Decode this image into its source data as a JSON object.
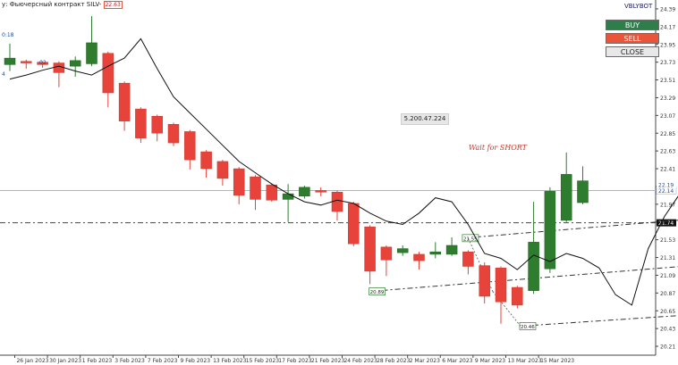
{
  "header": {
    "title": "у: Фьючерсный контракт SILV-",
    "title_badge": "22.63",
    "brand": "VBLYBOT",
    "left_labels": [
      "0:18",
      "4",
      "02"
    ]
  },
  "buttons": {
    "buy": "BUY",
    "sell": "SELL",
    "close": "CLOSE"
  },
  "labels": {
    "center": "5.200.47.224",
    "note": "Wait for SHORT"
  },
  "colors": {
    "bull": "#2e7d2e",
    "bear": "#e8433a",
    "line": "#111111",
    "hline": "#9ab7e6"
  },
  "chart_data": {
    "type": "candlestick",
    "y_ticks": [
      "24.39",
      "24.17",
      "23.95",
      "23.73",
      "23.51",
      "23.29",
      "23.07",
      "22.85",
      "22.63",
      "22.41",
      "22.19",
      "21.97",
      "21.75",
      "21.53",
      "21.31",
      "21.09",
      "20.87",
      "20.65",
      "20.43",
      "20.21"
    ],
    "ylim": [
      20.1,
      24.5
    ],
    "x_ticks": [
      "26 Jan 2023",
      "30 Jan 2023",
      "1 Feb 2023",
      "3 Feb 2023",
      "7 Feb 2023",
      "9 Feb 2023",
      "13 Feb 2023",
      "15 Feb 2023",
      "17 Feb 2023",
      "21 Feb 2023",
      "24 Feb 2023",
      "28 Feb 2023",
      "2 Mar 2023",
      "6 Mar 2023",
      "9 Mar 2023",
      "13 Mar 2023",
      "15 Mar 2023"
    ],
    "candles": [
      {
        "o": 23.7,
        "h": 23.96,
        "l": 23.62,
        "c": 23.78
      },
      {
        "o": 23.74,
        "h": 23.76,
        "l": 23.65,
        "c": 23.72
      },
      {
        "o": 23.73,
        "h": 23.74,
        "l": 23.66,
        "c": 23.7
      },
      {
        "o": 23.72,
        "h": 23.74,
        "l": 23.42,
        "c": 23.6
      },
      {
        "o": 23.68,
        "h": 23.8,
        "l": 23.55,
        "c": 23.75
      },
      {
        "o": 23.71,
        "h": 24.3,
        "l": 23.68,
        "c": 23.97
      },
      {
        "o": 23.84,
        "h": 23.86,
        "l": 23.17,
        "c": 23.35
      },
      {
        "o": 23.47,
        "h": 23.49,
        "l": 22.88,
        "c": 23.0
      },
      {
        "o": 23.15,
        "h": 23.17,
        "l": 22.73,
        "c": 22.79
      },
      {
        "o": 23.06,
        "h": 23.08,
        "l": 22.75,
        "c": 22.85
      },
      {
        "o": 22.96,
        "h": 22.98,
        "l": 22.69,
        "c": 22.73
      },
      {
        "o": 22.87,
        "h": 22.89,
        "l": 22.4,
        "c": 22.52
      },
      {
        "o": 22.62,
        "h": 22.64,
        "l": 22.3,
        "c": 22.41
      },
      {
        "o": 22.5,
        "h": 22.52,
        "l": 22.2,
        "c": 22.29
      },
      {
        "o": 22.41,
        "h": 22.43,
        "l": 21.97,
        "c": 22.08
      },
      {
        "o": 22.31,
        "h": 22.33,
        "l": 21.9,
        "c": 22.03
      },
      {
        "o": 22.21,
        "h": 22.23,
        "l": 22.0,
        "c": 22.02
      },
      {
        "o": 22.03,
        "h": 22.22,
        "l": 21.75,
        "c": 22.1
      },
      {
        "o": 22.07,
        "h": 22.2,
        "l": 22.04,
        "c": 22.18
      },
      {
        "o": 22.14,
        "h": 22.18,
        "l": 22.07,
        "c": 22.12
      },
      {
        "o": 22.12,
        "h": 22.14,
        "l": 21.77,
        "c": 21.88
      },
      {
        "o": 21.98,
        "h": 22.0,
        "l": 21.45,
        "c": 21.48
      },
      {
        "o": 21.69,
        "h": 21.71,
        "l": 20.98,
        "c": 21.14
      },
      {
        "o": 21.44,
        "h": 21.46,
        "l": 21.08,
        "c": 21.28
      },
      {
        "o": 21.37,
        "h": 21.46,
        "l": 21.33,
        "c": 21.42
      },
      {
        "o": 21.35,
        "h": 21.38,
        "l": 21.16,
        "c": 21.27
      },
      {
        "o": 21.35,
        "h": 21.5,
        "l": 21.3,
        "c": 21.38
      },
      {
        "o": 21.35,
        "h": 21.56,
        "l": 21.33,
        "c": 21.46
      },
      {
        "o": 21.38,
        "h": 21.4,
        "l": 21.1,
        "c": 21.2
      },
      {
        "o": 21.21,
        "h": 21.25,
        "l": 20.74,
        "c": 20.83
      },
      {
        "o": 21.18,
        "h": 21.2,
        "l": 20.49,
        "c": 20.76
      },
      {
        "o": 20.94,
        "h": 20.96,
        "l": 20.68,
        "c": 20.72
      },
      {
        "o": 20.9,
        "h": 22.0,
        "l": 20.86,
        "c": 21.5
      },
      {
        "o": 21.17,
        "h": 22.18,
        "l": 21.12,
        "c": 22.13
      },
      {
        "o": 21.77,
        "h": 22.61,
        "l": 21.75,
        "c": 22.34
      },
      {
        "o": 21.99,
        "h": 22.44,
        "l": 21.97,
        "c": 22.26
      }
    ],
    "moving_average": [
      23.52,
      23.57,
      23.63,
      23.68,
      23.62,
      23.57,
      23.68,
      23.78,
      24.02,
      23.65,
      23.3,
      23.1,
      22.9,
      22.7,
      22.5,
      22.36,
      22.22,
      22.1,
      22.0,
      21.96,
      22.02,
      21.98,
      21.86,
      21.76,
      21.72,
      21.86,
      22.05,
      22.0,
      21.72,
      21.36,
      21.3,
      21.16,
      21.34,
      21.26,
      21.36,
      21.3,
      21.18,
      20.85,
      20.72,
      21.42,
      21.82,
      22.12,
      22.2
    ],
    "horizontal_lines": [
      {
        "value": 22.14,
        "label": "22.14",
        "style": "solid"
      },
      {
        "value": 21.74,
        "label": "21.74",
        "style": "dash"
      }
    ],
    "trend_lines": [
      {
        "start_index": 31.2,
        "start_value": 20.46,
        "end_index": 46,
        "end_value": 20.66,
        "anchor_label": "20.46"
      },
      {
        "start_index": 22.0,
        "start_value": 20.89,
        "end_index": 46,
        "end_value": 21.28,
        "anchor_label": "20.89"
      },
      {
        "start_index": 27.7,
        "start_value": 21.55,
        "end_index": 46,
        "end_value": 21.86,
        "anchor_label": "21.55"
      }
    ],
    "price_marker": {
      "label": "22.19"
    }
  }
}
